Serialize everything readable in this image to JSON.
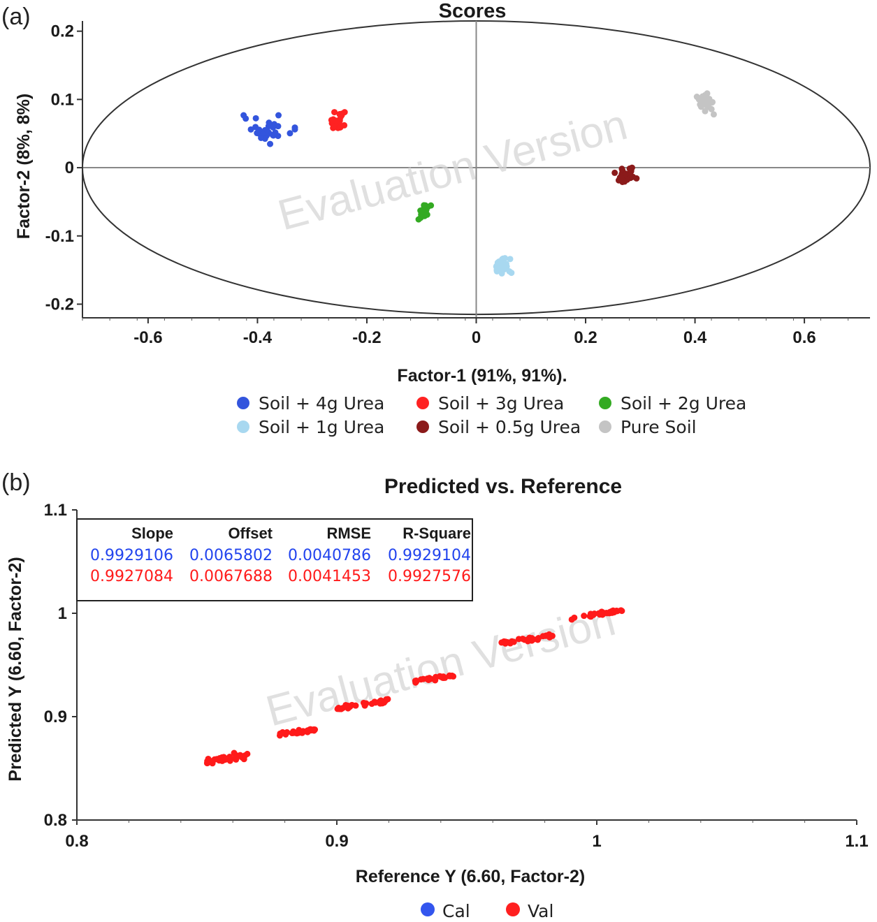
{
  "panel_a_label": "(a)",
  "panel_b_label": "(b)",
  "watermark": "Evaluation Version",
  "chart_data": [
    {
      "type": "scatter",
      "title": "Scores",
      "xlabel": "Factor-1 (91%, 91%).",
      "ylabel": "Factor-2 (8%, 8%)",
      "xlim": [
        -0.72,
        0.72
      ],
      "ylim": [
        -0.22,
        0.215
      ],
      "x_ticks": [
        {
          "v": -0.6,
          "label": "-0.6"
        },
        {
          "v": -0.4,
          "label": "-0.4"
        },
        {
          "v": -0.2,
          "label": "-0.2"
        },
        {
          "v": 0,
          "label": "0"
        },
        {
          "v": 0.2,
          "label": "0.2"
        },
        {
          "v": 0.4,
          "label": "0.4"
        },
        {
          "v": 0.6,
          "label": "0.6"
        }
      ],
      "y_ticks": [
        {
          "v": 0.2,
          "label": "0.2"
        },
        {
          "v": 0.1,
          "label": "0.1"
        },
        {
          "v": 0,
          "label": "0"
        },
        {
          "v": -0.1,
          "label": "-0.1"
        },
        {
          "v": -0.2,
          "label": "-0.2"
        }
      ],
      "grid": false,
      "reference_lines": {
        "x0": true,
        "y0": true
      },
      "ellipse": {
        "cx": 0,
        "cy": 0,
        "rx": 0.72,
        "ry": 0.215
      },
      "legend_position": "bottom",
      "series": [
        {
          "name": "Soil + 4g Urea",
          "color": "#3355dd",
          "center": [
            -0.38,
            0.055
          ],
          "spread": [
            0.04,
            0.018
          ],
          "n": 32
        },
        {
          "name": "Soil + 3g Urea",
          "color": "#ff2222",
          "center": [
            -0.255,
            0.068
          ],
          "spread": [
            0.015,
            0.011
          ],
          "n": 32
        },
        {
          "name": "Soil + 2g Urea",
          "color": "#33aa22",
          "center": [
            -0.095,
            -0.065
          ],
          "spread": [
            0.01,
            0.013
          ],
          "n": 28
        },
        {
          "name": "Soil + 1g Urea",
          "color": "#a8d8f0",
          "center": [
            0.045,
            -0.145
          ],
          "spread": [
            0.016,
            0.011
          ],
          "n": 30
        },
        {
          "name": "Soil + 0.5g Urea",
          "color": "#8b1a1a",
          "center": [
            0.275,
            -0.01
          ],
          "spread": [
            0.018,
            0.012
          ],
          "n": 30
        },
        {
          "name": "Pure Soil",
          "color": "#c4c4c4",
          "center": [
            0.42,
            0.095
          ],
          "spread": [
            0.015,
            0.014
          ],
          "n": 28
        }
      ]
    },
    {
      "type": "scatter",
      "title": "Predicted vs. Reference",
      "xlabel": "Reference Y (6.60, Factor-2)",
      "ylabel": "Predicted Y (6.60, Factor-2)",
      "xlim": [
        0.8,
        1.1
      ],
      "ylim": [
        0.8,
        1.1
      ],
      "x_ticks": [
        {
          "v": 0.8,
          "label": "0.8"
        },
        {
          "v": 0.9,
          "label": "0.9"
        },
        {
          "v": 1.0,
          "label": "1"
        },
        {
          "v": 1.1,
          "label": "1.1"
        }
      ],
      "y_ticks": [
        {
          "v": 0.8,
          "label": "0.8"
        },
        {
          "v": 0.9,
          "label": "0.9"
        },
        {
          "v": 1.0,
          "label": "1"
        },
        {
          "v": 1.1,
          "label": "1.1"
        }
      ],
      "grid": false,
      "legend_position": "bottom",
      "legend": [
        {
          "name": "Cal",
          "color": "#3355ee"
        },
        {
          "name": "Val",
          "color": "#ff2020"
        }
      ],
      "stats_table": {
        "headers": [
          "Slope",
          "Offset",
          "RMSE",
          "R-Square"
        ],
        "rows": [
          {
            "color": "#2244ee",
            "values": [
              "0.9929106",
              "0.0065802",
              "0.0040786",
              "0.9929104"
            ]
          },
          {
            "color": "#ff1a1a",
            "values": [
              "0.9927084",
              "0.0067688",
              "0.0041453",
              "0.9927576"
            ]
          }
        ]
      },
      "clusters": [
        {
          "x_range": [
            0.85,
            0.866
          ],
          "y_center": 0.86,
          "y_spread": 0.004,
          "n": 30
        },
        {
          "x_range": [
            0.878,
            0.892
          ],
          "y_center": 0.885,
          "y_spread": 0.002,
          "n": 30
        },
        {
          "x_range": [
            0.9,
            0.92
          ],
          "y_center": 0.912,
          "y_spread": 0.002,
          "n": 30
        },
        {
          "x_range": [
            0.93,
            0.945
          ],
          "y_center": 0.937,
          "y_spread": 0.002,
          "n": 30
        },
        {
          "x_range": [
            0.962,
            0.985
          ],
          "y_center": 0.975,
          "y_spread": 0.002,
          "n": 30
        },
        {
          "x_range": [
            0.99,
            1.01
          ],
          "y_center": 0.999,
          "y_spread": 0.002,
          "n": 30
        }
      ],
      "points_color": "#ff1a1a"
    }
  ]
}
